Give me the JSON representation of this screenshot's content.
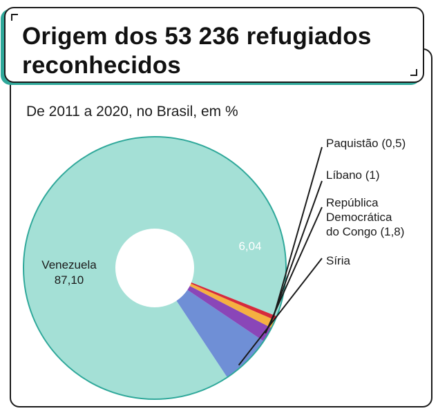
{
  "header": {
    "title": "Origem dos 53 236 refugiados reconhecidos",
    "subtitle": "De 2011 a 2020, no Brasil, em %"
  },
  "chart_data": {
    "type": "pie",
    "title": "Origem dos 53 236 refugiados reconhecidos",
    "subtitle": "De 2011 a 2020, no Brasil, em %",
    "donut": true,
    "slices": [
      {
        "name": "Venezuela",
        "value": 87.1,
        "value_label": "87,10",
        "color": "#a4e0d6"
      },
      {
        "name": "Síria",
        "value": 6.04,
        "value_label": "6,04",
        "color": "#6f8fd6"
      },
      {
        "name": "República Democrática do Congo",
        "value": 1.8,
        "color": "#8a46b8"
      },
      {
        "name": "Líbano",
        "value": 1,
        "color": "#f5b041"
      },
      {
        "name": "Paquistão",
        "value": 0.5,
        "color": "#d62a3c"
      }
    ],
    "labels": {
      "venezuela": [
        "Venezuela",
        "87,10"
      ],
      "siria_value": "6,04",
      "siria": "Síria",
      "congo": [
        "República",
        "Democrática",
        "do Congo (1,8)"
      ],
      "libano": "Líbano (1)",
      "paquistao": "Paquistão (0,5)"
    },
    "outline_color": "#2fa89a"
  }
}
